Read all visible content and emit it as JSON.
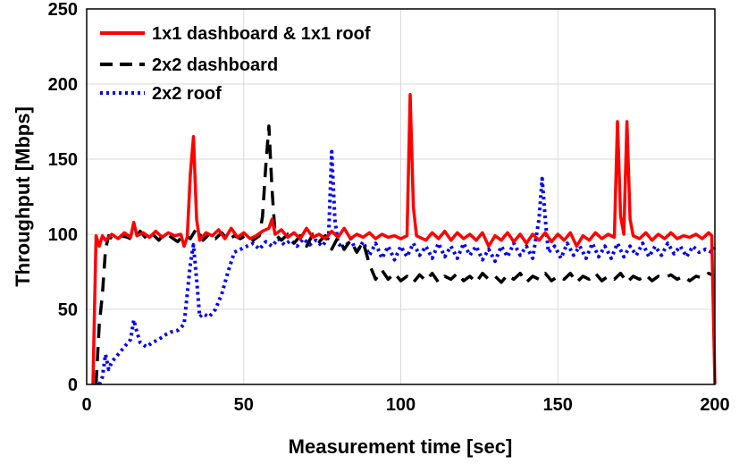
{
  "chart_data": {
    "type": "line",
    "title": "",
    "xlabel": "Measurement time [sec]",
    "ylabel": "Throughput [Mbps]",
    "xlim": [
      0,
      200
    ],
    "ylim": [
      0,
      250
    ],
    "xticks": [
      0,
      50,
      100,
      150,
      200
    ],
    "yticks": [
      0,
      50,
      100,
      150,
      200,
      250
    ],
    "grid": true,
    "legend_position": "top-left",
    "series": [
      {
        "name": "1x1 dashboard & 1x1 roof",
        "color": "#ff0000",
        "style": "solid",
        "points": [
          [
            2,
            0
          ],
          [
            3,
            99
          ],
          [
            4,
            92
          ],
          [
            5,
            99
          ],
          [
            6,
            96
          ],
          [
            8,
            100
          ],
          [
            10,
            97
          ],
          [
            12,
            101
          ],
          [
            14,
            98
          ],
          [
            15,
            108
          ],
          [
            16,
            99
          ],
          [
            18,
            101
          ],
          [
            20,
            98
          ],
          [
            22,
            102
          ],
          [
            24,
            98
          ],
          [
            26,
            101
          ],
          [
            28,
            99
          ],
          [
            30,
            100
          ],
          [
            31,
            92
          ],
          [
            32,
            98
          ],
          [
            33,
            140
          ],
          [
            34,
            165
          ],
          [
            35,
            110
          ],
          [
            36,
            96
          ],
          [
            38,
            101
          ],
          [
            40,
            99
          ],
          [
            42,
            103
          ],
          [
            44,
            97
          ],
          [
            46,
            104
          ],
          [
            48,
            98
          ],
          [
            50,
            101
          ],
          [
            52,
            97
          ],
          [
            54,
            99
          ],
          [
            56,
            102
          ],
          [
            58,
            104
          ],
          [
            59,
            110
          ],
          [
            60,
            100
          ],
          [
            62,
            103
          ],
          [
            64,
            98
          ],
          [
            66,
            101
          ],
          [
            68,
            97
          ],
          [
            70,
            104
          ],
          [
            72,
            98
          ],
          [
            74,
            100
          ],
          [
            76,
            97
          ],
          [
            78,
            102
          ],
          [
            80,
            98
          ],
          [
            82,
            104
          ],
          [
            84,
            97
          ],
          [
            86,
            100
          ],
          [
            88,
            98
          ],
          [
            90,
            101
          ],
          [
            92,
            97
          ],
          [
            94,
            100
          ],
          [
            96,
            98
          ],
          [
            98,
            99
          ],
          [
            100,
            97
          ],
          [
            102,
            99
          ],
          [
            103,
            193
          ],
          [
            104,
            118
          ],
          [
            105,
            99
          ],
          [
            108,
            96
          ],
          [
            110,
            101
          ],
          [
            112,
            97
          ],
          [
            114,
            102
          ],
          [
            116,
            96
          ],
          [
            118,
            101
          ],
          [
            120,
            97
          ],
          [
            122,
            100
          ],
          [
            124,
            96
          ],
          [
            126,
            101
          ],
          [
            128,
            92
          ],
          [
            130,
            99
          ],
          [
            132,
            96
          ],
          [
            134,
            101
          ],
          [
            136,
            95
          ],
          [
            138,
            100
          ],
          [
            140,
            94
          ],
          [
            142,
            100
          ],
          [
            144,
            96
          ],
          [
            146,
            101
          ],
          [
            148,
            95
          ],
          [
            150,
            100
          ],
          [
            152,
            96
          ],
          [
            154,
            101
          ],
          [
            156,
            92
          ],
          [
            158,
            99
          ],
          [
            160,
            96
          ],
          [
            162,
            101
          ],
          [
            164,
            97
          ],
          [
            166,
            100
          ],
          [
            168,
            98
          ],
          [
            169,
            175
          ],
          [
            170,
            112
          ],
          [
            171,
            100
          ],
          [
            172,
            175
          ],
          [
            173,
            110
          ],
          [
            174,
            99
          ],
          [
            176,
            97
          ],
          [
            178,
            101
          ],
          [
            180,
            96
          ],
          [
            182,
            100
          ],
          [
            184,
            97
          ],
          [
            186,
            101
          ],
          [
            188,
            97
          ],
          [
            190,
            99
          ],
          [
            192,
            98
          ],
          [
            194,
            100
          ],
          [
            196,
            97
          ],
          [
            198,
            101
          ],
          [
            199,
            99
          ],
          [
            200,
            0
          ]
        ]
      },
      {
        "name": "2x2 dashboard",
        "color": "#000000",
        "style": "dashed",
        "points": [
          [
            3,
            0
          ],
          [
            4,
            40
          ],
          [
            5,
            60
          ],
          [
            6,
            90
          ],
          [
            7,
            99
          ],
          [
            9,
            95
          ],
          [
            11,
            99
          ],
          [
            13,
            98
          ],
          [
            15,
            96
          ],
          [
            17,
            102
          ],
          [
            19,
            97
          ],
          [
            21,
            100
          ],
          [
            23,
            96
          ],
          [
            25,
            101
          ],
          [
            27,
            98
          ],
          [
            29,
            95
          ],
          [
            31,
            100
          ],
          [
            33,
            97
          ],
          [
            35,
            104
          ],
          [
            37,
            96
          ],
          [
            39,
            100
          ],
          [
            41,
            97
          ],
          [
            43,
            101
          ],
          [
            45,
            96
          ],
          [
            47,
            99
          ],
          [
            49,
            97
          ],
          [
            51,
            100
          ],
          [
            53,
            96
          ],
          [
            55,
            99
          ],
          [
            56,
            112
          ],
          [
            57,
            145
          ],
          [
            58,
            172
          ],
          [
            59,
            130
          ],
          [
            60,
            100
          ],
          [
            62,
            96
          ],
          [
            64,
            100
          ],
          [
            66,
            94
          ],
          [
            68,
            99
          ],
          [
            70,
            92
          ],
          [
            72,
            100
          ],
          [
            74,
            95
          ],
          [
            76,
            99
          ],
          [
            78,
            90
          ],
          [
            80,
            98
          ],
          [
            82,
            90
          ],
          [
            84,
            96
          ],
          [
            86,
            88
          ],
          [
            88,
            95
          ],
          [
            90,
            80
          ],
          [
            92,
            70
          ],
          [
            94,
            76
          ],
          [
            96,
            70
          ],
          [
            98,
            74
          ],
          [
            100,
            69
          ],
          [
            102,
            72
          ],
          [
            104,
            68
          ],
          [
            106,
            73
          ],
          [
            108,
            69
          ],
          [
            110,
            74
          ],
          [
            112,
            68
          ],
          [
            114,
            72
          ],
          [
            116,
            70
          ],
          [
            118,
            74
          ],
          [
            120,
            69
          ],
          [
            122,
            72
          ],
          [
            124,
            68
          ],
          [
            126,
            74
          ],
          [
            128,
            70
          ],
          [
            130,
            72
          ],
          [
            132,
            68
          ],
          [
            134,
            73
          ],
          [
            136,
            70
          ],
          [
            138,
            74
          ],
          [
            140,
            68
          ],
          [
            142,
            72
          ],
          [
            144,
            70
          ],
          [
            146,
            74
          ],
          [
            148,
            69
          ],
          [
            150,
            72
          ],
          [
            152,
            70
          ],
          [
            154,
            74
          ],
          [
            156,
            68
          ],
          [
            158,
            72
          ],
          [
            160,
            70
          ],
          [
            162,
            74
          ],
          [
            164,
            69
          ],
          [
            166,
            72
          ],
          [
            168,
            70
          ],
          [
            170,
            74
          ],
          [
            172,
            68
          ],
          [
            174,
            72
          ],
          [
            176,
            70
          ],
          [
            178,
            73
          ],
          [
            180,
            69
          ],
          [
            182,
            72
          ],
          [
            184,
            71
          ],
          [
            186,
            73
          ],
          [
            188,
            70
          ],
          [
            190,
            72
          ],
          [
            192,
            69
          ],
          [
            194,
            72
          ],
          [
            196,
            71
          ],
          [
            198,
            74
          ],
          [
            200,
            72
          ]
        ]
      },
      {
        "name": "2x2 roof",
        "color": "#0000ff",
        "style": "dotted",
        "points": [
          [
            4,
            0
          ],
          [
            5,
            5
          ],
          [
            6,
            20
          ],
          [
            7,
            10
          ],
          [
            8,
            15
          ],
          [
            10,
            20
          ],
          [
            12,
            25
          ],
          [
            14,
            30
          ],
          [
            15,
            43
          ],
          [
            16,
            35
          ],
          [
            17,
            28
          ],
          [
            19,
            25
          ],
          [
            21,
            28
          ],
          [
            23,
            30
          ],
          [
            25,
            33
          ],
          [
            27,
            35
          ],
          [
            29,
            36
          ],
          [
            31,
            40
          ],
          [
            33,
            80
          ],
          [
            34,
            93
          ],
          [
            35,
            70
          ],
          [
            36,
            45
          ],
          [
            37,
            47
          ],
          [
            39,
            45
          ],
          [
            41,
            50
          ],
          [
            43,
            60
          ],
          [
            45,
            75
          ],
          [
            47,
            88
          ],
          [
            49,
            90
          ],
          [
            51,
            92
          ],
          [
            53,
            94
          ],
          [
            55,
            90
          ],
          [
            57,
            95
          ],
          [
            59,
            92
          ],
          [
            61,
            97
          ],
          [
            63,
            93
          ],
          [
            65,
            96
          ],
          [
            67,
            92
          ],
          [
            69,
            97
          ],
          [
            71,
            93
          ],
          [
            73,
            96
          ],
          [
            75,
            92
          ],
          [
            77,
            98
          ],
          [
            78,
            155
          ],
          [
            79,
            110
          ],
          [
            80,
            94
          ],
          [
            82,
            90
          ],
          [
            84,
            97
          ],
          [
            86,
            88
          ],
          [
            88,
            95
          ],
          [
            90,
            86
          ],
          [
            92,
            94
          ],
          [
            94,
            84
          ],
          [
            96,
            92
          ],
          [
            98,
            83
          ],
          [
            100,
            92
          ],
          [
            102,
            85
          ],
          [
            104,
            94
          ],
          [
            106,
            86
          ],
          [
            108,
            92
          ],
          [
            110,
            84
          ],
          [
            112,
            94
          ],
          [
            114,
            85
          ],
          [
            116,
            92
          ],
          [
            118,
            84
          ],
          [
            120,
            94
          ],
          [
            122,
            86
          ],
          [
            124,
            92
          ],
          [
            126,
            83
          ],
          [
            128,
            90
          ],
          [
            130,
            82
          ],
          [
            132,
            92
          ],
          [
            134,
            85
          ],
          [
            136,
            94
          ],
          [
            138,
            86
          ],
          [
            140,
            92
          ],
          [
            142,
            84
          ],
          [
            144,
            110
          ],
          [
            145,
            137
          ],
          [
            146,
            110
          ],
          [
            147,
            88
          ],
          [
            149,
            92
          ],
          [
            151,
            84
          ],
          [
            153,
            94
          ],
          [
            155,
            86
          ],
          [
            157,
            92
          ],
          [
            159,
            84
          ],
          [
            161,
            94
          ],
          [
            163,
            85
          ],
          [
            165,
            92
          ],
          [
            167,
            84
          ],
          [
            169,
            94
          ],
          [
            171,
            85
          ],
          [
            173,
            92
          ],
          [
            175,
            86
          ],
          [
            177,
            94
          ],
          [
            179,
            85
          ],
          [
            181,
            92
          ],
          [
            183,
            86
          ],
          [
            185,
            94
          ],
          [
            187,
            87
          ],
          [
            189,
            92
          ],
          [
            191,
            85
          ],
          [
            193,
            92
          ],
          [
            195,
            88
          ],
          [
            197,
            90
          ],
          [
            199,
            88
          ],
          [
            200,
            92
          ]
        ]
      }
    ]
  }
}
